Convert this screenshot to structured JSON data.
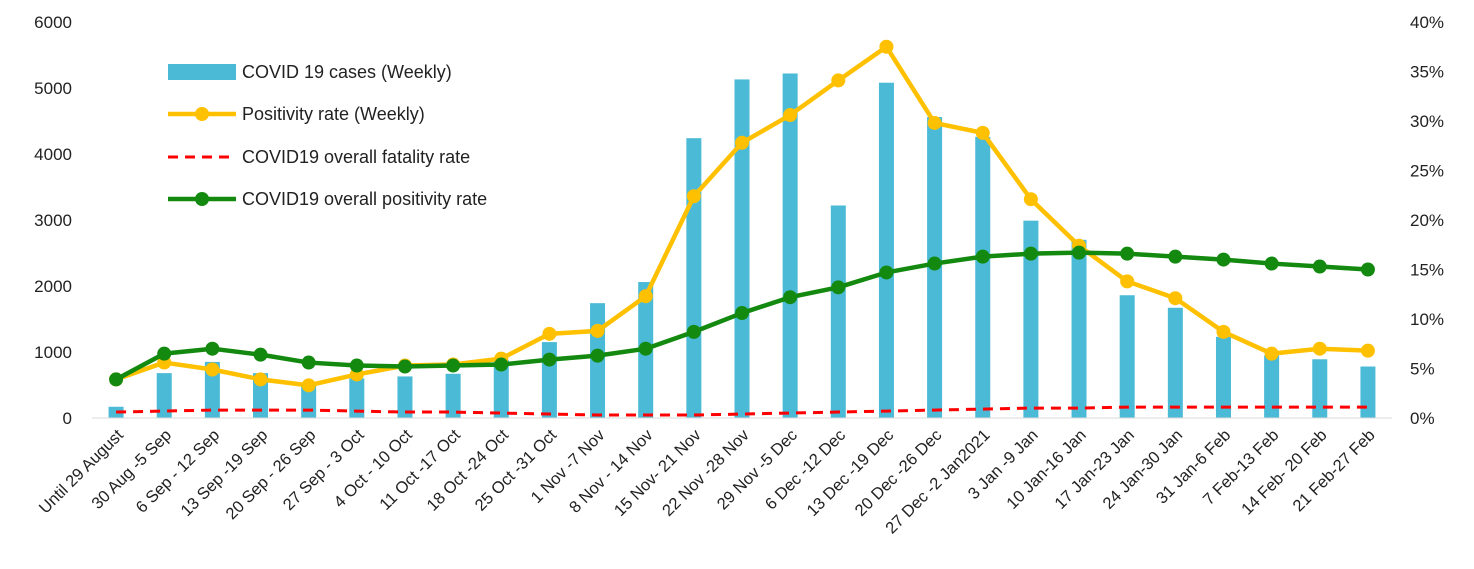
{
  "chart_data": {
    "type": "bar",
    "categories": [
      "Until 29 August",
      "30 Aug -5 Sep",
      "6 Sep - 12 Sep",
      "13 Sep -19 Sep",
      "20 Sep - 26 Sep",
      "27 Sep - 3 Oct",
      "4 Oct - 10 Oct",
      "11 Oct -17 Oct",
      "18 Oct -24 Oct",
      "25 Oct -31 Oct",
      "1 Nov -7 Nov",
      "8 Nov - 14 Nov",
      "15 Nov- 21 Nov",
      "22 Nov -28 Nov",
      "29 Nov -5 Dec",
      "6 Dec -12 Dec",
      "13 Dec -19 Dec",
      "20 Dec -26 Dec",
      "27 Dec -2 Jan2021",
      "3 Jan -9 Jan",
      "10 Jan-16 Jan",
      "17 Jan-23 Jan",
      "24 Jan-30 Jan",
      "31 Jan-6 Feb",
      "7 Feb-13 Feb",
      "14 Feb- 20 Feb",
      "21 Feb-27 Feb"
    ],
    "series": [
      {
        "name": "COVID 19 cases (Weekly)",
        "type": "bar",
        "axis": "left",
        "color": "#4bbad6",
        "values": [
          170,
          680,
          850,
          680,
          520,
          600,
          630,
          670,
          880,
          1150,
          1740,
          2060,
          4240,
          5130,
          5220,
          3220,
          5080,
          4560,
          4260,
          2990,
          2700,
          1860,
          1670,
          1230,
          950,
          890,
          780
        ]
      },
      {
        "name": "Positivity rate (Weekly)",
        "type": "line",
        "axis": "right",
        "color": "#ffc000",
        "values": [
          3.9,
          5.6,
          4.9,
          3.9,
          3.3,
          4.4,
          5.3,
          5.4,
          6.0,
          8.5,
          8.8,
          12.3,
          22.4,
          27.8,
          30.6,
          34.1,
          37.5,
          29.8,
          28.8,
          22.1,
          17.4,
          13.8,
          12.1,
          8.7,
          6.5,
          7.0,
          6.8
        ]
      },
      {
        "name": "COVID19 overall fatality rate",
        "type": "dashed-line",
        "axis": "right",
        "color": "#ff0000",
        "values": [
          0.6,
          0.7,
          0.8,
          0.8,
          0.8,
          0.7,
          0.6,
          0.6,
          0.5,
          0.4,
          0.3,
          0.3,
          0.3,
          0.4,
          0.5,
          0.6,
          0.7,
          0.8,
          0.9,
          1.0,
          1.0,
          1.1,
          1.1,
          1.1,
          1.1,
          1.1,
          1.1
        ]
      },
      {
        "name": "COVID19 overall positivity rate",
        "type": "line",
        "axis": "right",
        "color": "#138a0f",
        "values": [
          3.9,
          6.5,
          7.0,
          6.4,
          5.6,
          5.3,
          5.2,
          5.3,
          5.4,
          5.9,
          6.3,
          7.0,
          8.7,
          10.6,
          12.2,
          13.2,
          14.7,
          15.6,
          16.3,
          16.6,
          16.7,
          16.6,
          16.3,
          16.0,
          15.6,
          15.3,
          15.0
        ]
      }
    ],
    "left_axis": {
      "min": 0,
      "max": 6000,
      "ticks": [
        0,
        1000,
        2000,
        3000,
        4000,
        5000,
        6000
      ],
      "tick_labels": [
        "0",
        "1000",
        "2000",
        "3000",
        "4000",
        "5000",
        "6000"
      ]
    },
    "right_axis": {
      "min": 0,
      "max": 40,
      "ticks": [
        0,
        5,
        10,
        15,
        20,
        25,
        30,
        35,
        40
      ],
      "tick_labels": [
        "0%",
        "5%",
        "10%",
        "15%",
        "20%",
        "25%",
        "30%",
        "35%",
        "40%"
      ]
    },
    "title": "",
    "xlabel": "",
    "ylabel": "",
    "grid": false,
    "legend_position": "top-left"
  }
}
